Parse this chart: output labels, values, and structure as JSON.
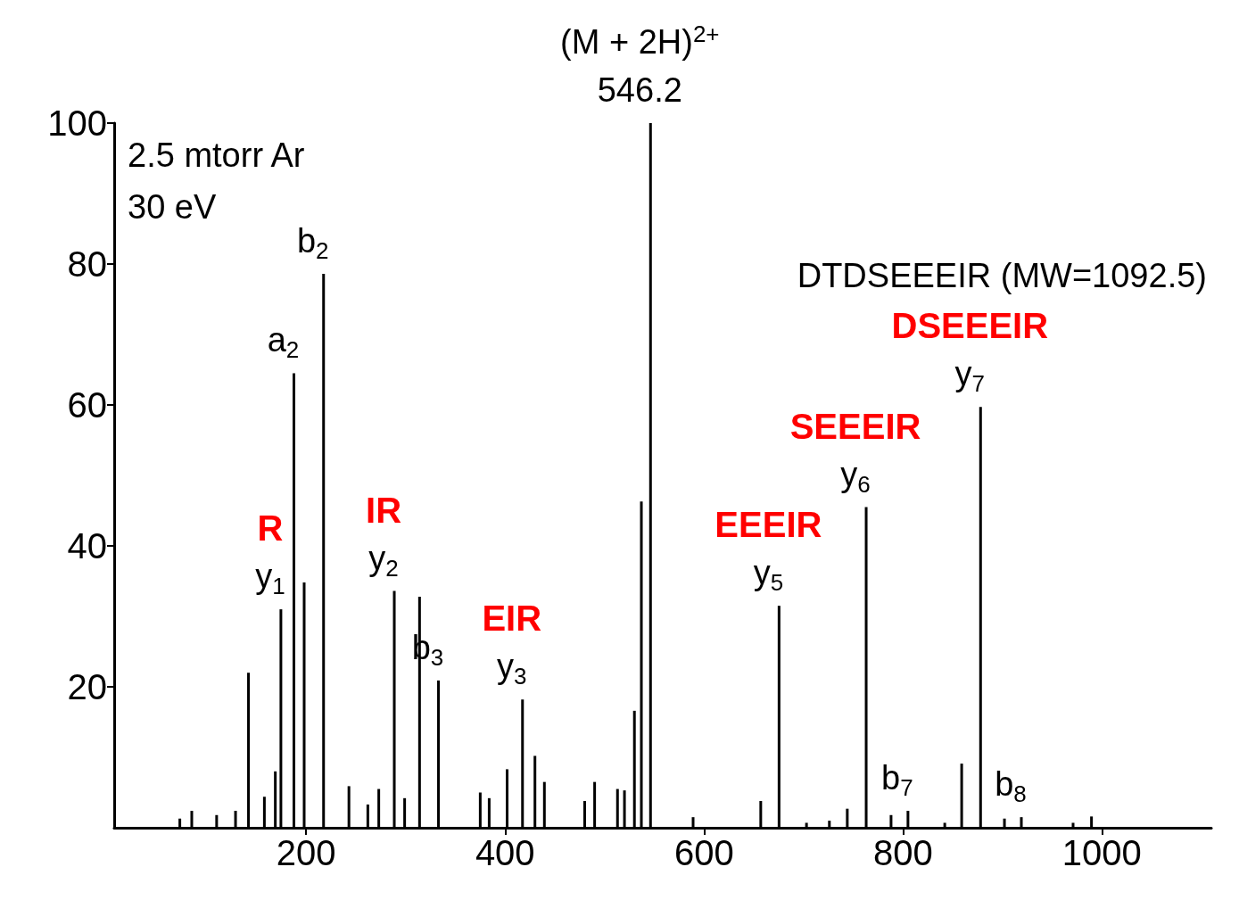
{
  "chart_data": {
    "type": "bar",
    "color": "#000000",
    "x": [
      73,
      85,
      110,
      129,
      142,
      158,
      169,
      174.6,
      187.7,
      198,
      217.5,
      243,
      262,
      273,
      288.6,
      299,
      314,
      333,
      375,
      384,
      402,
      417.5,
      430,
      439.5,
      480,
      490,
      513,
      520,
      530,
      537,
      546.2,
      589,
      657,
      675.4,
      703,
      726,
      744,
      763,
      788,
      805,
      842,
      859,
      878,
      902,
      919,
      971,
      989.5
    ],
    "values": [
      1.3,
      2.4,
      1.8,
      2.4,
      22,
      4.4,
      8,
      31,
      64.5,
      34.8,
      78.6,
      5.9,
      3.3,
      5.5,
      33.6,
      4.2,
      32.8,
      20.9,
      5,
      4.2,
      8.3,
      18.2,
      10.2,
      6.5,
      3.8,
      6.5,
      5.5,
      5.3,
      16.6,
      46.3,
      100,
      1.5,
      3.8,
      31.5,
      0.7,
      1,
      2.7,
      45.5,
      1.8,
      2.4,
      0.7,
      9.1,
      59.7,
      1.3,
      1.5,
      0.7,
      1.6
    ],
    "xlim": [
      7,
      1110
    ],
    "xticks": [
      200,
      400,
      600,
      800,
      1000
    ],
    "ylim": [
      0,
      100
    ],
    "yticks": [
      20,
      40,
      60,
      80,
      100
    ],
    "grid": false,
    "annotations": [
      "2.5 mtorr Ar",
      "30 eV",
      "DTDSEEEIR (MW=1092.5)",
      {
        "text": "546.2",
        "x": 546.2,
        "y": 100
      },
      {
        "text": "(M + 2H)$^{2+}$",
        "x": 546.2,
        "y": 100
      },
      {
        "text": "y$_{1}$",
        "x": 174.6,
        "y": 31
      },
      {
        "text": "R",
        "x": 174.6,
        "y": 31
      },
      {
        "text": "a$_{2}$",
        "x": 187.7,
        "y": 64.5
      },
      {
        "text": "b$_{2}$",
        "x": 217.5,
        "y": 78.6
      },
      {
        "text": "y$_{2}$",
        "x": 288.6,
        "y": 33.6
      },
      {
        "text": "IR",
        "x": 288.6,
        "y": 33.6
      },
      {
        "text": "b$_{3}$",
        "x": 333,
        "y": 20.9
      },
      {
        "text": "y$_{3}$",
        "x": 417.5,
        "y": 18.2
      },
      {
        "text": "EIR",
        "x": 417.5,
        "y": 18.2
      },
      {
        "text": "y$_{5}$",
        "x": 675.4,
        "y": 31.5
      },
      {
        "text": "EEEIR",
        "x": 675.4,
        "y": 31.5
      },
      {
        "text": "y$_{6}$",
        "x": 763,
        "y": 45.5
      },
      {
        "text": "SEEEIR",
        "x": 763,
        "y": 45.5
      },
      {
        "text": "b$_{7}$",
        "x": 805,
        "y": 2.4
      },
      {
        "text": "y$_{7}$",
        "x": 878,
        "y": 59.7
      },
      {
        "text": "DSEEEIR",
        "x": 878,
        "y": 59.7
      },
      {
        "text": "b$_{8}$",
        "x": 919,
        "y": 1.5
      }
    ]
  }
}
